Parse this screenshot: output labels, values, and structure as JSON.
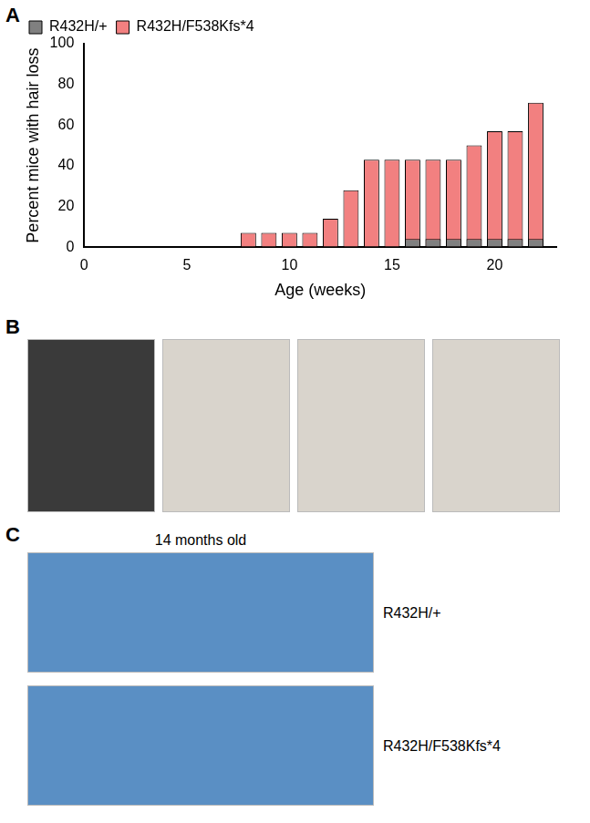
{
  "chart_data": {
    "type": "bar",
    "x": [
      8,
      9,
      10,
      11,
      12,
      13,
      14,
      15,
      16,
      17,
      18,
      19,
      20,
      21,
      22
    ],
    "series": [
      {
        "name": "R432H/+",
        "color": "#808080",
        "values": [
          0,
          0,
          0,
          0,
          0,
          0,
          0,
          0,
          4,
          4,
          4,
          4,
          4,
          4,
          4
        ]
      },
      {
        "name": "R432H/F538Kfs*4",
        "color": "#f28080",
        "values": [
          7,
          7,
          7,
          7,
          14,
          28,
          43,
          43,
          43,
          43,
          43,
          50,
          57,
          57,
          71
        ]
      }
    ],
    "x_label": "Age (weeks)",
    "y_label": "Percent mice with hair loss",
    "xlim": [
      0,
      23
    ],
    "xticks": [
      0,
      5,
      10,
      15,
      20
    ],
    "ylim": [
      0,
      100
    ],
    "yticks": [
      0,
      20,
      40,
      60,
      80,
      100
    ],
    "grid": false,
    "legend": "top-left"
  },
  "panel_labels": [
    "A",
    "B",
    "C"
  ],
  "panel_c": {
    "title": "14 months old",
    "rows": [
      "R432H/+",
      "R432H/F538Kfs*4"
    ]
  }
}
